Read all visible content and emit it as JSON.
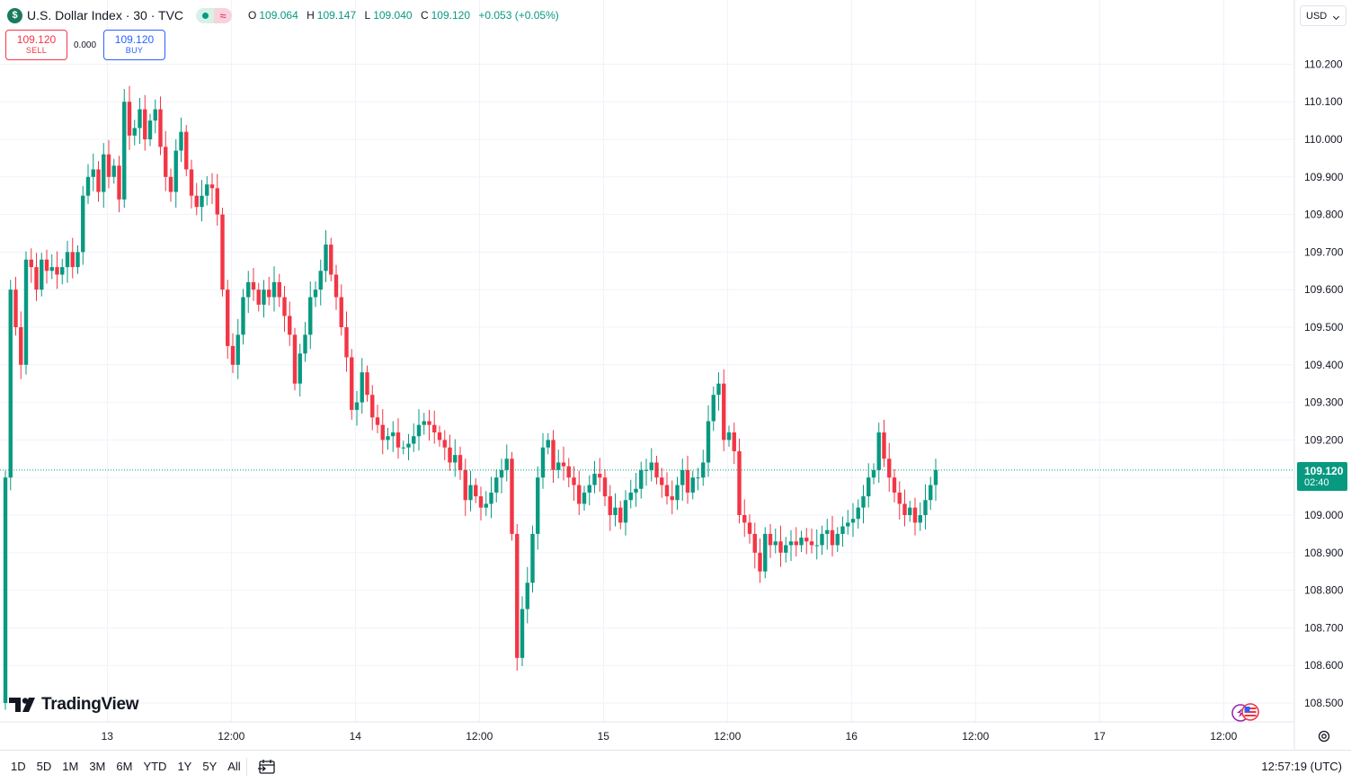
{
  "header": {
    "symbol_badge": "$",
    "title": "U.S. Dollar Index · 30 · TVC",
    "status_wave": "≈",
    "ohlc": {
      "o_label": "O",
      "o": "109.064",
      "h_label": "H",
      "h": "109.147",
      "l_label": "L",
      "l": "109.040",
      "c_label": "C",
      "c": "109.120",
      "change": "+0.053 (+0.05%)"
    }
  },
  "trade": {
    "sell_price": "109.120",
    "sell_label": "SELL",
    "spread": "0.000",
    "buy_price": "109.120",
    "buy_label": "BUY"
  },
  "currency": "USD",
  "logo": {
    "text": "TradingView"
  },
  "bottom": {
    "ranges": [
      "1D",
      "5D",
      "1M",
      "3M",
      "6M",
      "YTD",
      "1Y",
      "5Y",
      "All"
    ],
    "clock": "12:57:19 (UTC)"
  },
  "colors": {
    "up": "#089981",
    "down": "#f23645",
    "grid": "#f0f3fa"
  },
  "chart_data": {
    "type": "candlestick",
    "interval": "30",
    "yticks": [
      "110.200",
      "110.100",
      "110.000",
      "109.900",
      "109.800",
      "109.700",
      "109.600",
      "109.500",
      "109.400",
      "109.300",
      "109.200",
      "109.100",
      "109.000",
      "108.900",
      "108.800",
      "108.700",
      "108.600",
      "108.500"
    ],
    "ylim": [
      108.47,
      110.32
    ],
    "x_labels": [
      {
        "label": "13",
        "bar": 23
      },
      {
        "label": "12:00",
        "bar": 47
      },
      {
        "label": "14",
        "bar": 71
      },
      {
        "label": "12:00",
        "bar": 95
      },
      {
        "label": "15",
        "bar": 119
      },
      {
        "label": "12:00",
        "bar": 143
      },
      {
        "label": "16",
        "bar": 167
      },
      {
        "label": "12:00",
        "bar": 191
      },
      {
        "label": "17",
        "bar": 215
      },
      {
        "label": "12:00",
        "bar": 239
      }
    ],
    "last_price": "109.120",
    "last_value": 109.12,
    "countdown": "02:40",
    "closes": [
      109.1,
      109.6,
      109.5,
      109.4,
      109.68,
      109.66,
      109.6,
      109.68,
      109.65,
      109.66,
      109.64,
      109.66,
      109.7,
      109.66,
      109.7,
      109.85,
      109.9,
      109.92,
      109.86,
      109.96,
      109.9,
      109.93,
      109.84,
      110.1,
      110.01,
      110.03,
      110.08,
      110.0,
      110.05,
      110.08,
      109.98,
      109.9,
      109.86,
      109.97,
      110.02,
      109.92,
      109.85,
      109.82,
      109.85,
      109.88,
      109.87,
      109.8,
      109.6,
      109.45,
      109.4,
      109.48,
      109.58,
      109.62,
      109.6,
      109.56,
      109.6,
      109.58,
      109.62,
      109.58,
      109.53,
      109.48,
      109.35,
      109.43,
      109.48,
      109.58,
      109.6,
      109.65,
      109.72,
      109.64,
      109.58,
      109.5,
      109.42,
      109.28,
      109.3,
      109.38,
      109.32,
      109.26,
      109.24,
      109.2,
      109.21,
      109.22,
      109.18,
      109.18,
      109.19,
      109.21,
      109.24,
      109.25,
      109.24,
      109.22,
      109.2,
      109.18,
      109.14,
      109.16,
      109.12,
      109.04,
      109.08,
      109.05,
      109.02,
      109.03,
      109.06,
      109.1,
      109.12,
      109.15,
      108.95,
      108.62,
      108.75,
      108.82,
      108.95,
      109.1,
      109.18,
      109.2,
      109.12,
      109.14,
      109.13,
      109.1,
      109.08,
      109.03,
      109.06,
      109.08,
      109.11,
      109.1,
      109.05,
      109.0,
      109.02,
      108.98,
      109.04,
      109.06,
      109.07,
      109.12,
      109.12,
      109.14,
      109.1,
      109.08,
      109.05,
      109.04,
      109.08,
      109.12,
      109.06,
      109.1,
      109.1,
      109.14,
      109.25,
      109.32,
      109.35,
      109.2,
      109.22,
      109.17,
      109.0,
      108.98,
      108.95,
      108.9,
      108.85,
      108.95,
      108.92,
      108.93,
      108.9,
      108.92,
      108.93,
      108.92,
      108.94,
      108.93,
      108.92,
      108.92,
      108.95,
      108.96,
      108.92,
      108.95,
      108.97,
      108.98,
      108.99,
      109.02,
      109.05,
      109.1,
      109.12,
      109.22,
      109.15,
      109.1,
      109.06,
      109.03,
      109.0,
      109.02,
      108.98,
      109.0,
      109.04,
      109.08,
      109.12
    ]
  }
}
